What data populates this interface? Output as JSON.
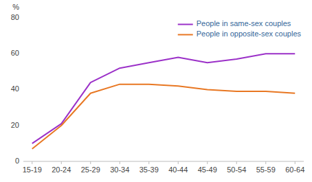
{
  "chart_data": {
    "type": "line",
    "ylabel": "%",
    "categories": [
      "15-19",
      "20-24",
      "25-29",
      "30-34",
      "35-39",
      "40-44",
      "45-49",
      "50-54",
      "55-59",
      "60-64"
    ],
    "series": [
      {
        "name": "People in same-sex couples",
        "color": "#9B30C8",
        "values": [
          10,
          21,
          44,
          52,
          55,
          58,
          55,
          57,
          60,
          60
        ]
      },
      {
        "name": "People in opposite-sex couples",
        "color": "#E87722",
        "values": [
          7,
          20,
          38,
          43,
          43,
          42,
          40,
          39,
          39,
          38
        ]
      }
    ],
    "ylim": [
      0,
      80
    ],
    "yticks": [
      0,
      20,
      40,
      60,
      80
    ],
    "grid": false,
    "legend": "upper right"
  }
}
